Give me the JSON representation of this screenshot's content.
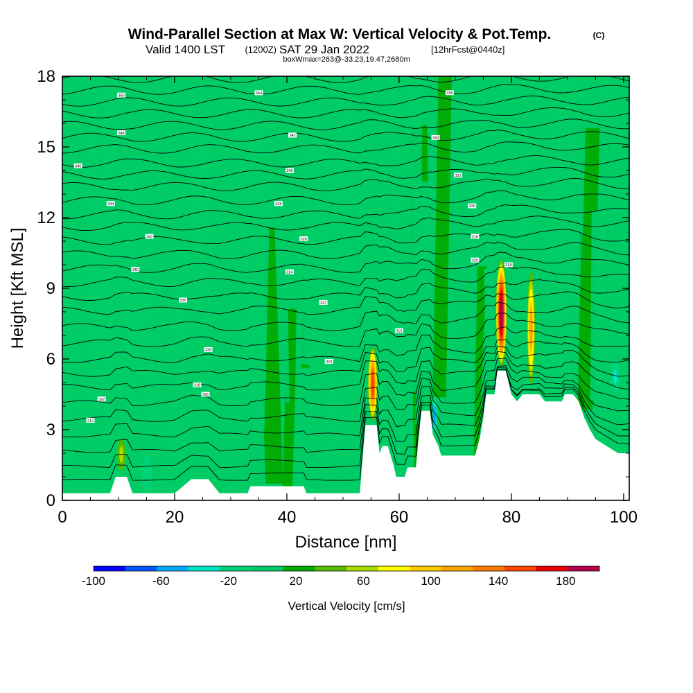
{
  "header": {
    "title": "Wind-Parallel Section at Max W: Vertical Velocity & Pot.Temp.",
    "copyright": "(C)",
    "valid_main": "Valid 1400 LST",
    "valid_utc": "(1200Z)",
    "valid_date": "SAT 29 Jan 2022",
    "forecast": "[12hrFcst@0440z]",
    "box_info": "boxWmax=263@-33.23,19.47,2680m"
  },
  "chart_data": {
    "type": "heatmap",
    "xlabel": "Distance [nm]",
    "ylabel": "Height [Kft MSL]",
    "xlim": [
      0,
      101
    ],
    "ylim": [
      0,
      18
    ],
    "x_ticks": [
      0,
      20,
      40,
      60,
      80,
      100
    ],
    "y_ticks": [
      0,
      3,
      6,
      9,
      12,
      15,
      18
    ],
    "background_level_color": "#00cc66",
    "updrafts": [
      {
        "x": 10.5,
        "bottom": 0.9,
        "top": 3.0,
        "peak_cm_s": 55,
        "halfwidth": 1.2
      },
      {
        "x": 55.3,
        "bottom": 3.2,
        "top": 6.7,
        "peak_cm_s": 150,
        "halfwidth": 0.9
      },
      {
        "x": 78.2,
        "bottom": 5.5,
        "top": 10.4,
        "peak_cm_s": 200,
        "halfwidth": 1.0
      },
      {
        "x": 83.5,
        "bottom": 4.5,
        "top": 10.1,
        "peak_cm_s": 110,
        "halfwidth": 0.8
      }
    ],
    "downdrafts": [
      {
        "x": 66.3,
        "bottom": 2.8,
        "top": 4.4,
        "min_cm_s": -60,
        "halfwidth": 0.4
      },
      {
        "x": 98.5,
        "bottom": 4.5,
        "top": 6.0,
        "min_cm_s": -30,
        "halfwidth": 0.9
      },
      {
        "x": 15.0,
        "bottom": 0.3,
        "top": 2.0,
        "min_cm_s": -25,
        "halfwidth": 1.0
      }
    ],
    "terrain_kft": [
      [
        0,
        0.3
      ],
      [
        8.5,
        0.3
      ],
      [
        9.5,
        1.0
      ],
      [
        11.5,
        1.0
      ],
      [
        12.5,
        0.3
      ],
      [
        20,
        0.3
      ],
      [
        23,
        0.9
      ],
      [
        26,
        0.9
      ],
      [
        28,
        0.3
      ],
      [
        33,
        0.3
      ],
      [
        33.5,
        0.6
      ],
      [
        43,
        0.6
      ],
      [
        43.5,
        0.3
      ],
      [
        53,
        0.3
      ],
      [
        53.5,
        1.8
      ],
      [
        54,
        3.2
      ],
      [
        56,
        3.2
      ],
      [
        56.5,
        2.0
      ],
      [
        57,
        2.3
      ],
      [
        58,
        2.3
      ],
      [
        59,
        1.5
      ],
      [
        59.5,
        1.0
      ],
      [
        61,
        1.0
      ],
      [
        61.5,
        1.4
      ],
      [
        63,
        1.4
      ],
      [
        63.5,
        2.7
      ],
      [
        64,
        3.8
      ],
      [
        65.5,
        3.8
      ],
      [
        66,
        2.8
      ],
      [
        67,
        2.3
      ],
      [
        67.5,
        1.9
      ],
      [
        73.5,
        1.9
      ],
      [
        74,
        2.3
      ],
      [
        74.5,
        2.8
      ],
      [
        75,
        3.5
      ],
      [
        75.5,
        4.5
      ],
      [
        77,
        4.5
      ],
      [
        77.5,
        5.5
      ],
      [
        79,
        5.5
      ],
      [
        80,
        4.5
      ],
      [
        81,
        4.2
      ],
      [
        82,
        4.5
      ],
      [
        85,
        4.5
      ],
      [
        86,
        4.2
      ],
      [
        89,
        4.2
      ],
      [
        89.5,
        4.5
      ],
      [
        91,
        4.5
      ],
      [
        92,
        4.2
      ],
      [
        93,
        3.5
      ],
      [
        94,
        3.0
      ],
      [
        95,
        2.6
      ],
      [
        97,
        2.3
      ],
      [
        99,
        2.0
      ],
      [
        101,
        2.0
      ]
    ],
    "theta_contours": {
      "base_heights_kft": [
        0.6,
        1.2,
        1.9,
        2.6,
        3.3,
        4.0,
        4.7,
        5.3,
        5.9,
        6.6,
        7.3,
        8.0,
        8.6,
        9.2,
        9.8,
        10.4,
        11.0,
        11.6,
        12.1,
        12.7,
        13.3,
        13.8,
        14.3,
        14.9,
        15.4,
        15.9,
        16.4,
        16.9,
        17.4,
        17.9
      ]
    },
    "contour_labels": [
      {
        "x": 10.5,
        "y": 17.2,
        "text": "350"
      },
      {
        "x": 35,
        "y": 17.3,
        "text": "344"
      },
      {
        "x": 69,
        "y": 17.3,
        "text": "335"
      },
      {
        "x": 10.5,
        "y": 15.6,
        "text": "348"
      },
      {
        "x": 41,
        "y": 15.5,
        "text": "342"
      },
      {
        "x": 66.5,
        "y": 15.4,
        "text": "334"
      },
      {
        "x": 2.8,
        "y": 14.2,
        "text": "346"
      },
      {
        "x": 40.5,
        "y": 14.0,
        "text": "340"
      },
      {
        "x": 70.5,
        "y": 13.8,
        "text": "332"
      },
      {
        "x": 8.6,
        "y": 12.6,
        "text": "344"
      },
      {
        "x": 38.5,
        "y": 12.6,
        "text": "328"
      },
      {
        "x": 73,
        "y": 12.5,
        "text": "330"
      },
      {
        "x": 15.5,
        "y": 11.2,
        "text": "342"
      },
      {
        "x": 43,
        "y": 11.1,
        "text": "326"
      },
      {
        "x": 73.5,
        "y": 11.2,
        "text": "316"
      },
      {
        "x": 13,
        "y": 9.8,
        "text": "340"
      },
      {
        "x": 40.5,
        "y": 9.7,
        "text": "324"
      },
      {
        "x": 73.5,
        "y": 10.2,
        "text": "320"
      },
      {
        "x": 79.5,
        "y": 10.0,
        "text": "318"
      },
      {
        "x": 21.5,
        "y": 8.5,
        "text": "330"
      },
      {
        "x": 46.5,
        "y": 8.4,
        "text": "322"
      },
      {
        "x": 26,
        "y": 6.4,
        "text": "328"
      },
      {
        "x": 60,
        "y": 7.2,
        "text": "316"
      },
      {
        "x": 47.5,
        "y": 5.9,
        "text": "324"
      },
      {
        "x": 24,
        "y": 4.9,
        "text": "318"
      },
      {
        "x": 25.5,
        "y": 4.5,
        "text": "326"
      },
      {
        "x": 7,
        "y": 4.3,
        "text": "322"
      },
      {
        "x": 5,
        "y": 3.4,
        "text": "312"
      }
    ]
  },
  "colorbar": {
    "colors": [
      "#0000ff",
      "#0055ff",
      "#00aaff",
      "#00e6c8",
      "#00d278",
      "#00cc66",
      "#00aa00",
      "#55bb00",
      "#aadd00",
      "#ffff00",
      "#ffcc00",
      "#ffa500",
      "#ff7b00",
      "#ff4500",
      "#e60000",
      "#b4004b"
    ],
    "min": -100,
    "max": 200,
    "tick_values": [
      -100,
      -60,
      -20,
      20,
      60,
      100,
      140,
      180
    ],
    "tick_labels": [
      "-100",
      "-60",
      "-20",
      "20",
      "60",
      "100",
      "140",
      "180"
    ],
    "label": "Vertical Velocity [cm/s]"
  }
}
